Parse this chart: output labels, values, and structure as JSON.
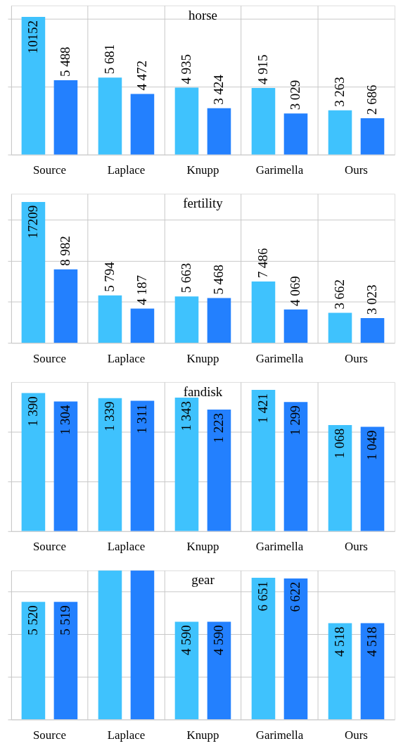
{
  "chart_data": [
    {
      "type": "bar",
      "title": "horse",
      "categories": [
        "Source",
        "Laplace",
        "Knupp",
        "Garimella",
        "Ours"
      ],
      "ylim": [
        0,
        11000
      ],
      "yticks": [
        {
          "value": 0,
          "label": null
        },
        {
          "value": 5000,
          "label": null
        },
        {
          "value": 10000,
          "label": null
        }
      ],
      "grid": true,
      "tick_labels": "x",
      "legend": false,
      "series": [
        {
          "color": "#3fc2fd",
          "values": [
            10152,
            5681,
            4935,
            4915,
            3263
          ],
          "value_labels": [
            "10152",
            "5 681",
            "4 935",
            "4 915",
            "3 263"
          ]
        },
        {
          "color": "#2380fe",
          "values": [
            5488,
            4472,
            3424,
            3029,
            2686
          ],
          "value_labels": [
            "5 488",
            "4 472",
            "3 424",
            "3 029",
            "2 686"
          ]
        }
      ]
    },
    {
      "type": "bar",
      "title": "fertility",
      "categories": [
        "Source",
        "Laplace",
        "Knupp",
        "Garimella",
        "Ours"
      ],
      "ylim": [
        0,
        18200
      ],
      "yticks": [
        {
          "value": 0,
          "label": null
        },
        {
          "value": 5000,
          "label": null
        },
        {
          "value": 10000,
          "label": null
        },
        {
          "value": 15000,
          "label": null
        }
      ],
      "grid": true,
      "tick_labels": "x",
      "legend": false,
      "series": [
        {
          "color": "#3fc2fd",
          "values": [
            17209,
            5794,
            5663,
            7486,
            3662
          ],
          "value_labels": [
            "17209",
            "5 794",
            "5 663",
            "7 486",
            "3 662"
          ]
        },
        {
          "color": "#2380fe",
          "values": [
            8982,
            4187,
            5468,
            4069,
            3023
          ],
          "value_labels": [
            "8 982",
            "4 187",
            "5 468",
            "4 069",
            "3 023"
          ]
        }
      ]
    },
    {
      "type": "bar",
      "title": "fandisk",
      "categories": [
        "Source",
        "Laplace",
        "Knupp",
        "Garimella",
        "Ours"
      ],
      "ylim": [
        0,
        1500
      ],
      "yticks": [
        {
          "value": 0,
          "label": null
        },
        {
          "value": 500,
          "label": null
        },
        {
          "value": 1000,
          "label": null
        }
      ],
      "grid": true,
      "tick_labels": "x",
      "legend": false,
      "series": [
        {
          "color": "#3fc2fd",
          "values": [
            1390,
            1339,
            1343,
            1421,
            1068
          ],
          "value_labels": [
            "1 390",
            "1 339",
            "1 343",
            "1 421",
            "1 068"
          ]
        },
        {
          "color": "#2380fe",
          "values": [
            1304,
            1311,
            1223,
            1299,
            1049
          ],
          "value_labels": [
            "1 304",
            "1 311",
            "1 223",
            "1 299",
            "1 049"
          ]
        }
      ]
    },
    {
      "type": "bar",
      "title": "gear",
      "categories": [
        "Source",
        "Laplace",
        "Knupp",
        "Garimella",
        "Ours"
      ],
      "ylim": [
        0,
        7000
      ],
      "yticks": [
        {
          "value": 0,
          "label": null
        },
        {
          "value": 2000,
          "label": null
        },
        {
          "value": 4000,
          "label": null
        },
        {
          "value": 6000,
          "label": null
        }
      ],
      "grid": true,
      "tick_labels": "x",
      "legend": false,
      "series": [
        {
          "color": "#3fc2fd",
          "values": [
            5520,
            7000,
            4590,
            6651,
            4518
          ],
          "value_labels": [
            "5 520",
            null,
            "4 590",
            "6 651",
            "4 518"
          ]
        },
        {
          "color": "#2380fe",
          "values": [
            5519,
            7000,
            4590,
            6622,
            4518
          ],
          "value_labels": [
            "5 519",
            null,
            "4 590",
            "6 622",
            "4 518"
          ]
        }
      ]
    }
  ]
}
